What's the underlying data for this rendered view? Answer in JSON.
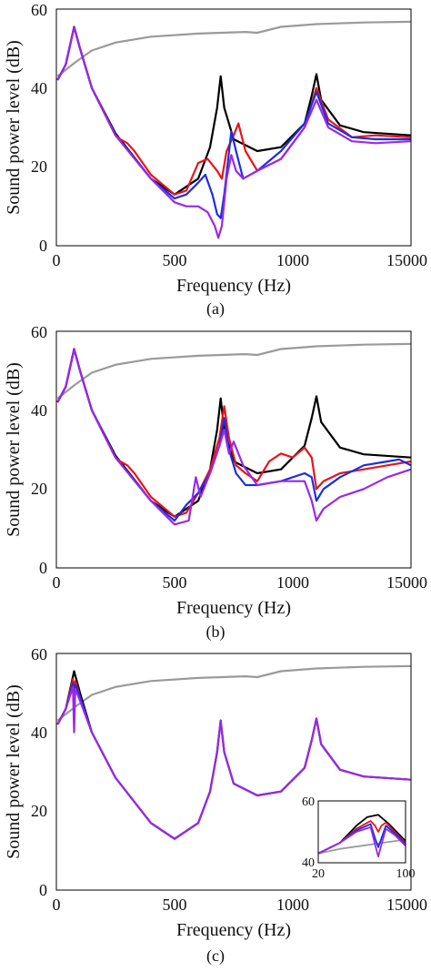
{
  "colors": {
    "black": "#000000",
    "red": "#e8141a",
    "blue": "#1a2fe0",
    "purple": "#9a28e6",
    "gray": "#9a9a9a"
  },
  "chart_data": [
    {
      "type": "line",
      "caption": "(a)",
      "xlabel": "Frequency (Hz)",
      "ylabel": "Sound power level (dB)",
      "xlim": [
        0,
        1500
      ],
      "ylim": [
        0,
        60
      ],
      "xticks": [
        "0",
        "500",
        "1000",
        "15000"
      ],
      "yticks": [
        "0",
        "20",
        "40",
        "60"
      ],
      "series": [
        {
          "color": "gray",
          "x": [
            5,
            80,
            150,
            250,
            400,
            600,
            800,
            850,
            950,
            1100,
            1300,
            1500
          ],
          "y": [
            43,
            46.5,
            49.5,
            51.5,
            53,
            53.8,
            54.2,
            54,
            55.5,
            56.2,
            56.6,
            56.8
          ]
        },
        {
          "color": "black",
          "x": [
            5,
            40,
            75,
            100,
            150,
            250,
            400,
            500,
            600,
            650,
            680,
            695,
            710,
            750,
            850,
            950,
            1050,
            1080,
            1100,
            1120,
            1200,
            1300,
            1500
          ],
          "y": [
            42,
            46,
            55.5,
            50,
            40,
            28.5,
            17,
            13,
            17,
            25,
            35,
            43,
            35,
            27,
            24,
            25,
            31,
            38,
            43.5,
            37,
            30.5,
            28.8,
            28
          ]
        },
        {
          "color": "red",
          "x": [
            5,
            40,
            75,
            100,
            150,
            250,
            270,
            300,
            330,
            400,
            500,
            550,
            600,
            640,
            680,
            700,
            720,
            750,
            770,
            800,
            850,
            950,
            1050,
            1100,
            1150,
            1250,
            1350,
            1500
          ],
          "y": [
            42,
            46,
            55.5,
            50,
            40,
            28,
            27,
            26,
            24,
            18,
            13,
            14,
            21,
            22,
            19,
            17,
            24,
            28,
            31,
            24,
            19,
            22,
            30,
            40,
            32,
            27.5,
            28,
            27.5
          ]
        },
        {
          "color": "blue",
          "x": [
            5,
            40,
            75,
            100,
            150,
            250,
            400,
            500,
            550,
            600,
            630,
            660,
            680,
            695,
            710,
            740,
            760,
            790,
            850,
            950,
            1050,
            1100,
            1150,
            1250,
            1350,
            1500
          ],
          "y": [
            42,
            46,
            55.5,
            50,
            40,
            28,
            17,
            12,
            13,
            16,
            18,
            13,
            8,
            7,
            13,
            29,
            24,
            17,
            19,
            24,
            31,
            39,
            31,
            27.5,
            27,
            27
          ]
        },
        {
          "color": "purple",
          "x": [
            5,
            40,
            75,
            100,
            150,
            250,
            400,
            500,
            550,
            600,
            640,
            670,
            685,
            700,
            720,
            740,
            760,
            790,
            850,
            950,
            1050,
            1100,
            1150,
            1250,
            1350,
            1500
          ],
          "y": [
            42,
            46,
            55.5,
            50,
            40,
            28,
            17,
            11,
            10,
            10,
            8.5,
            5,
            2,
            5,
            17,
            23,
            19,
            17,
            19,
            22,
            30,
            37,
            30,
            26.5,
            26,
            26.5
          ]
        }
      ]
    },
    {
      "type": "line",
      "caption": "(b)",
      "xlabel": "Frequency (Hz)",
      "ylabel": "Sound power level (dB)",
      "xlim": [
        0,
        1500
      ],
      "ylim": [
        0,
        60
      ],
      "xticks": [
        "0",
        "500",
        "1000",
        "15000"
      ],
      "yticks": [
        "0",
        "20",
        "40",
        "60"
      ],
      "series": [
        {
          "color": "gray",
          "x": [
            5,
            80,
            150,
            250,
            400,
            600,
            800,
            850,
            950,
            1100,
            1300,
            1500
          ],
          "y": [
            43,
            46.5,
            49.5,
            51.5,
            53,
            53.8,
            54.2,
            54,
            55.5,
            56.2,
            56.6,
            56.8
          ]
        },
        {
          "color": "black",
          "x": [
            5,
            40,
            75,
            100,
            150,
            250,
            400,
            500,
            600,
            650,
            680,
            695,
            710,
            750,
            850,
            950,
            1050,
            1080,
            1100,
            1120,
            1200,
            1300,
            1500
          ],
          "y": [
            42,
            46,
            55.5,
            50,
            40,
            28.5,
            17,
            13,
            17,
            25,
            35,
            43,
            35,
            27,
            24,
            25,
            31,
            38,
            43.5,
            37,
            30.5,
            28.8,
            28
          ]
        },
        {
          "color": "red",
          "x": [
            5,
            40,
            75,
            100,
            150,
            250,
            270,
            300,
            330,
            400,
            500,
            550,
            600,
            650,
            690,
            710,
            730,
            760,
            800,
            850,
            900,
            950,
            1000,
            1050,
            1080,
            1100,
            1130,
            1200,
            1300,
            1400,
            1500
          ],
          "y": [
            42,
            46,
            55.5,
            50,
            40,
            28,
            27,
            26,
            24,
            18,
            13,
            14,
            19,
            25,
            33,
            41,
            33,
            26,
            24,
            22,
            27,
            29,
            28,
            30.5,
            28,
            20,
            22,
            24,
            25,
            26,
            27
          ]
        },
        {
          "color": "blue",
          "x": [
            5,
            40,
            75,
            100,
            150,
            250,
            400,
            500,
            550,
            600,
            650,
            690,
            710,
            730,
            760,
            800,
            850,
            950,
            1050,
            1080,
            1100,
            1130,
            1200,
            1300,
            1400,
            1450,
            1500
          ],
          "y": [
            42,
            46,
            55.5,
            50,
            40,
            28,
            17,
            12,
            16,
            19,
            24,
            31,
            38,
            30,
            24,
            21,
            21,
            22,
            24,
            23,
            17,
            20,
            23,
            26,
            27,
            27.5,
            26
          ]
        },
        {
          "color": "purple",
          "x": [
            5,
            40,
            75,
            100,
            150,
            250,
            400,
            500,
            560,
            590,
            610,
            650,
            690,
            710,
            730,
            750,
            790,
            850,
            950,
            1050,
            1080,
            1100,
            1130,
            1200,
            1300,
            1400,
            1500
          ],
          "y": [
            42,
            46,
            55.5,
            50,
            40,
            28,
            17,
            11,
            12,
            23,
            18,
            24,
            31,
            35,
            29,
            32,
            26,
            21,
            22,
            22,
            17,
            12,
            15,
            18,
            20,
            23,
            25
          ]
        }
      ]
    },
    {
      "type": "line",
      "caption": "(c)",
      "xlabel": "Frequency (Hz)",
      "ylabel": "Sound power level (dB)",
      "xlim": [
        0,
        1500
      ],
      "ylim": [
        0,
        60
      ],
      "xticks": [
        "0",
        "500",
        "1000",
        "15000"
      ],
      "yticks": [
        "0",
        "20",
        "40",
        "60"
      ],
      "series": [
        {
          "color": "gray",
          "x": [
            5,
            80,
            150,
            250,
            400,
            600,
            800,
            850,
            950,
            1100,
            1300,
            1500
          ],
          "y": [
            43,
            46.5,
            49.5,
            51.5,
            53,
            53.8,
            54.2,
            54,
            55.5,
            56.2,
            56.6,
            56.8
          ]
        },
        {
          "color": "black",
          "x": [
            5,
            40,
            75,
            100,
            150,
            250,
            400,
            500,
            600,
            650,
            680,
            695,
            710,
            750,
            850,
            950,
            1050,
            1080,
            1100,
            1120,
            1200,
            1300,
            1500
          ],
          "y": [
            42,
            46,
            55.5,
            50,
            40,
            28.5,
            17,
            13,
            17,
            25,
            35,
            43,
            35,
            27,
            24,
            25,
            31,
            38,
            43.5,
            37,
            30.5,
            28.8,
            28
          ]
        },
        {
          "color": "red",
          "x": [
            5,
            40,
            70,
            75,
            80,
            100,
            150
          ],
          "y": [
            42,
            46,
            53.5,
            50,
            53,
            49,
            40
          ]
        },
        {
          "color": "blue",
          "x": [
            5,
            40,
            70,
            75,
            80,
            100,
            150
          ],
          "y": [
            42,
            46,
            52.5,
            46,
            52,
            49,
            40
          ]
        },
        {
          "color": "purple",
          "x": [
            5,
            40,
            70,
            75,
            80,
            100,
            150,
            250,
            400,
            500,
            600,
            650,
            680,
            695,
            710,
            750,
            850,
            950,
            1050,
            1080,
            1100,
            1120,
            1200,
            1300,
            1500
          ],
          "y": [
            42,
            46,
            51.5,
            40,
            51,
            48,
            40,
            28.5,
            17,
            13,
            17,
            25,
            35,
            43,
            35,
            27,
            24,
            25,
            31,
            38,
            43.5,
            37,
            30.5,
            28.8,
            28
          ]
        }
      ],
      "inset": {
        "xlim": [
          20,
          100
        ],
        "ylim": [
          40,
          60
        ],
        "xticks": [
          "20",
          "100"
        ],
        "yticks": [
          "40",
          "60"
        ],
        "series": [
          {
            "color": "gray",
            "x": [
              20,
              40,
              60,
              80,
              100
            ],
            "y": [
              43,
              44.5,
              45.5,
              46.5,
              47.5
            ]
          },
          {
            "color": "black",
            "x": [
              20,
              40,
              55,
              65,
              75,
              85,
              100
            ],
            "y": [
              43,
              46.5,
              52,
              54.8,
              55.5,
              52.5,
              47
            ]
          },
          {
            "color": "red",
            "x": [
              20,
              40,
              55,
              68,
              72,
              75,
              78,
              82,
              90,
              100
            ],
            "y": [
              43,
              46.5,
              51,
              53.5,
              52,
              50,
              52,
              53,
              50,
              46.5
            ]
          },
          {
            "color": "blue",
            "x": [
              20,
              40,
              55,
              68,
              72,
              75,
              78,
              82,
              90,
              100
            ],
            "y": [
              43,
              46.5,
              50.5,
              52.5,
              48,
              45,
              48,
              52,
              49.5,
              46
            ]
          },
          {
            "color": "purple",
            "x": [
              20,
              40,
              55,
              68,
              72,
              75,
              78,
              82,
              90,
              100
            ],
            "y": [
              43,
              46.5,
              50,
              51.5,
              46,
              42,
              46,
              51,
              49,
              45.5
            ]
          }
        ]
      }
    }
  ]
}
